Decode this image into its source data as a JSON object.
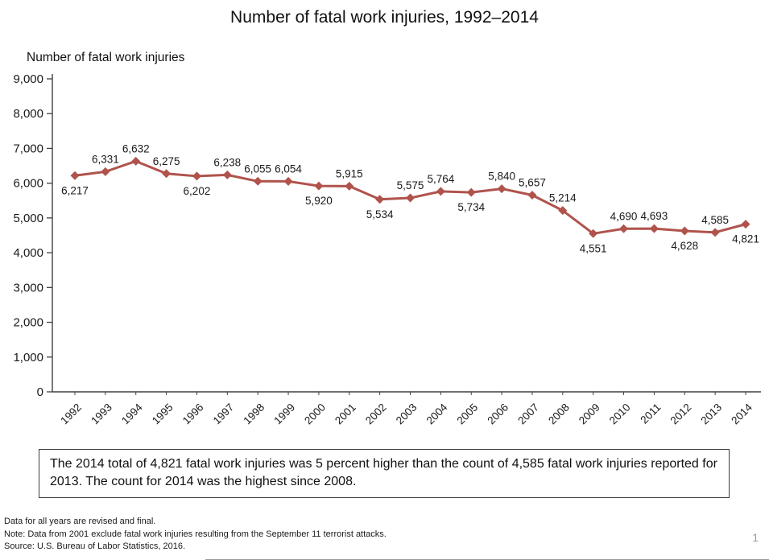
{
  "page": {
    "title": "Number of fatal work injuries, 1992–2014",
    "page_number": "1"
  },
  "chart_data": {
    "type": "line",
    "title": "Number of fatal work injuries, 1992–2014",
    "axis_title": "Number of fatal work injuries",
    "categories": [
      "1992",
      "1993",
      "1994",
      "1995",
      "1996",
      "1997",
      "1998",
      "1999",
      "2000",
      "2001",
      "2002",
      "2003",
      "2004",
      "2005",
      "2006",
      "2007",
      "2008",
      "2009",
      "2010",
      "2011",
      "2012",
      "2013",
      "2014"
    ],
    "values": [
      6217,
      6331,
      6632,
      6275,
      6202,
      6238,
      6055,
      6054,
      5920,
      5915,
      5534,
      5575,
      5764,
      5734,
      5840,
      5657,
      5214,
      4551,
      4690,
      4693,
      4628,
      4585,
      4821
    ],
    "label_positions": [
      "below",
      "above",
      "above",
      "above",
      "below",
      "above",
      "above",
      "above",
      "below",
      "above",
      "below",
      "above",
      "above",
      "below",
      "above",
      "above",
      "above",
      "below",
      "above",
      "above",
      "below",
      "above",
      "below"
    ],
    "ylim": [
      0,
      9000
    ],
    "ytick_step": 1000,
    "xlabel": "",
    "ylabel": "Number of fatal work injuries",
    "grid": false,
    "legend": "none",
    "marker": "diamond",
    "line_color": "#b0534c",
    "axis_color": "#404040",
    "text_color": "#1a1a1a"
  },
  "callout": {
    "text": "The 2014 total of 4,821 fatal work injuries was 5 percent higher than the count of 4,585 fatal work injuries reported for 2013. The count for 2014 was the highest since 2008."
  },
  "footnotes": {
    "line1": "Data for all years are revised and final.",
    "line2": "Note: Data from 2001 exclude fatal work injuries resulting from the September 11 terrorist attacks.",
    "line3": "Source: U.S. Bureau of Labor Statistics, 2016."
  }
}
